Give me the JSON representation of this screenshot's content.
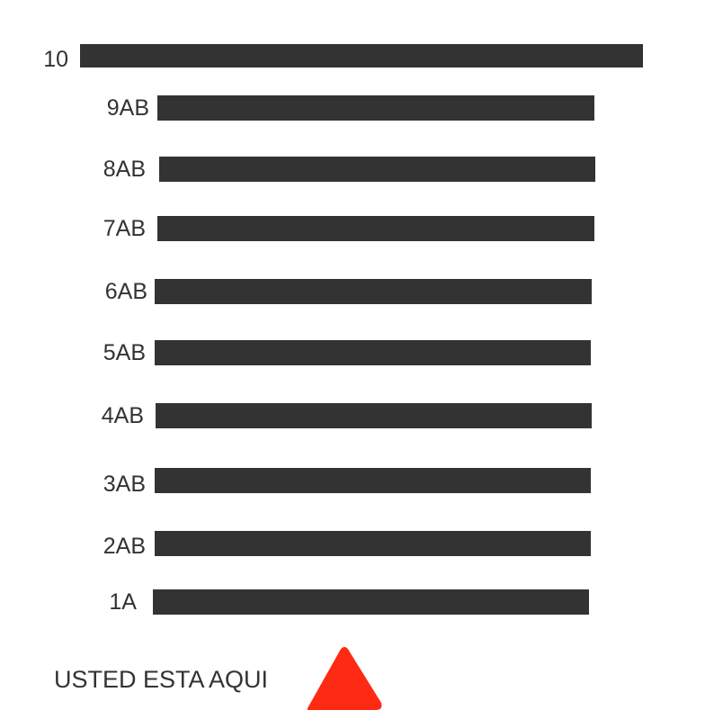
{
  "floors": [
    {
      "label": "10"
    },
    {
      "label": "9AB"
    },
    {
      "label": "8AB"
    },
    {
      "label": "7AB"
    },
    {
      "label": "6AB"
    },
    {
      "label": "5AB"
    },
    {
      "label": "4AB"
    },
    {
      "label": "3AB"
    },
    {
      "label": "2AB"
    },
    {
      "label": "1A"
    }
  ],
  "you_are_here": {
    "text": "USTED ESTA AQUI",
    "marker_icon": "red-triangle-icon",
    "marker_color": "#ff2a14"
  },
  "colors": {
    "bar": "#333333",
    "text": "#333333",
    "background": "#ffffff"
  }
}
